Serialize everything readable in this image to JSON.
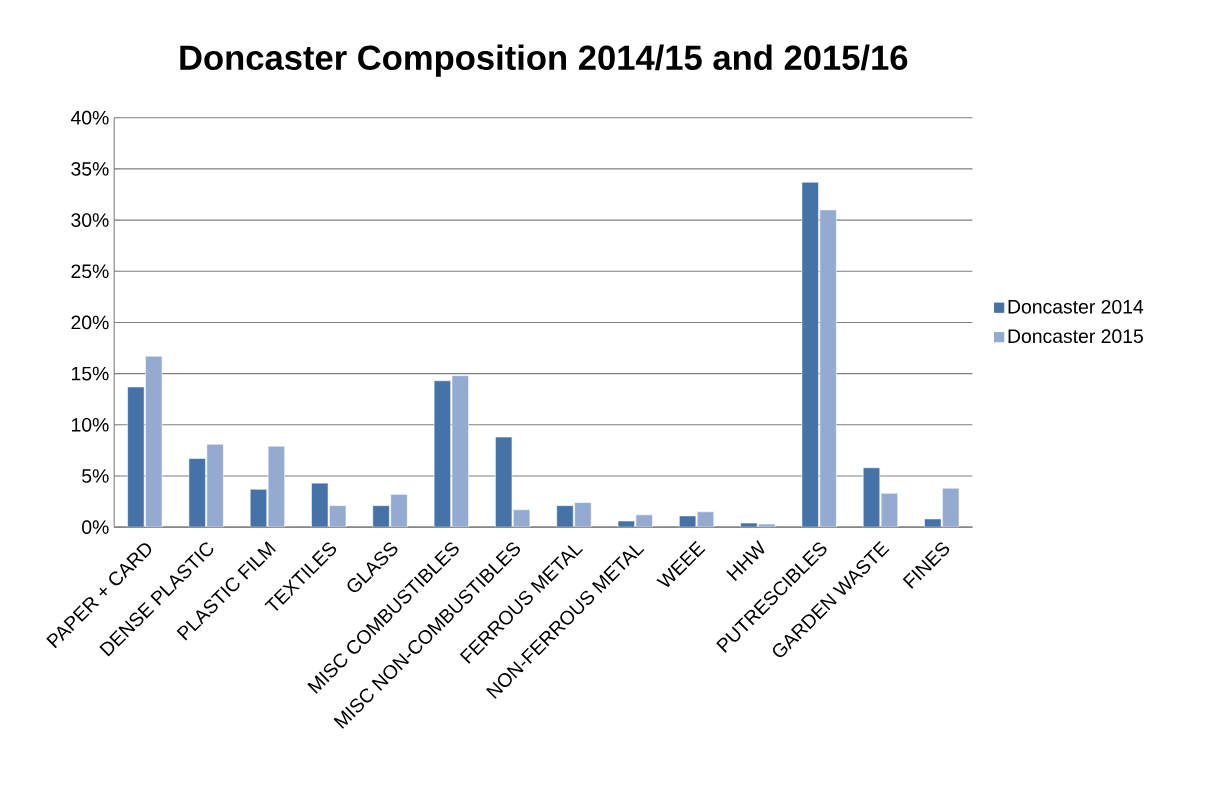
{
  "chart_data": {
    "type": "bar",
    "title": "Doncaster Composition 2014/15 and 2015/16",
    "categories": [
      "PAPER + CARD",
      "DENSE PLASTIC",
      "PLASTIC FILM",
      "TEXTILES",
      "GLASS",
      "MISC COMBUSTIBLES",
      "MISC NON-COMBUSTIBLES",
      "FERROUS METAL",
      "NON-FERROUS METAL",
      "WEEE",
      "HHW",
      "PUTRESCIBLES",
      "GARDEN WASTE",
      "FINES"
    ],
    "series": [
      {
        "name": "Doncaster 2014",
        "color": "#4572a7",
        "values": [
          13.7,
          6.7,
          3.7,
          4.3,
          2.1,
          14.3,
          8.8,
          2.1,
          0.6,
          1.1,
          0.4,
          33.7,
          5.8,
          0.8
        ]
      },
      {
        "name": "Doncaster 2015",
        "color": "#95aad1",
        "values": [
          16.7,
          8.1,
          7.9,
          2.1,
          3.2,
          14.8,
          1.7,
          2.4,
          1.2,
          1.5,
          0.3,
          31.0,
          3.3,
          3.8
        ]
      }
    ],
    "ylim": [
      0,
      40
    ],
    "yticks": [
      {
        "value": 0,
        "label": "0%"
      },
      {
        "value": 5,
        "label": "5%"
      },
      {
        "value": 10,
        "label": "10%"
      },
      {
        "value": 15,
        "label": "15%"
      },
      {
        "value": 20,
        "label": "20%"
      },
      {
        "value": 25,
        "label": "25%"
      },
      {
        "value": 30,
        "label": "30%"
      },
      {
        "value": 35,
        "label": "35%"
      },
      {
        "value": 40,
        "label": "40%"
      }
    ],
    "grid": "y",
    "legend": "right"
  }
}
